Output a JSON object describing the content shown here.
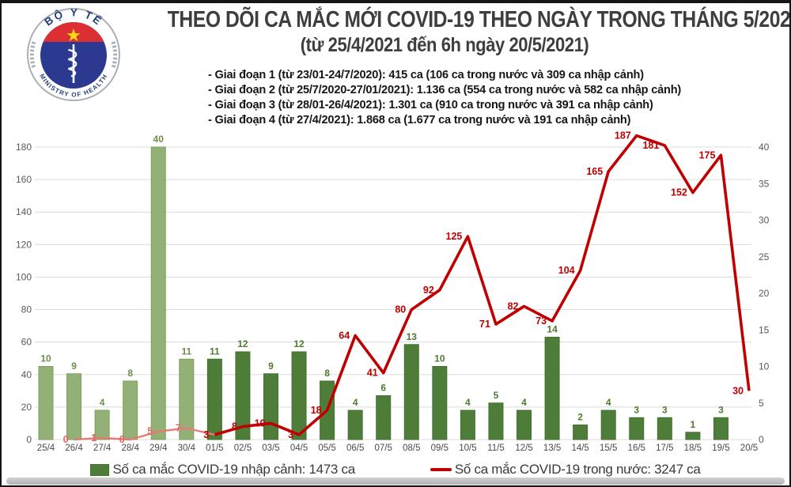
{
  "header": {
    "title": "THEO DÕI CA MẮC MỚI COVID-19 THEO NGÀY TRONG THÁNG 5/2021",
    "subtitle": "(từ 25/4/2021 đến 6h ngày 20/5/2021)",
    "bullets": [
      "- Giai đoạn 1 (từ 23/01-24/7/2020): 415 ca (106 ca trong nước và 309 ca nhập cảnh)",
      "- Giai đoạn 2 (từ 25/7/2020-27/01/2021): 1.136 ca (554 ca trong nước và 582 ca nhập cảnh)",
      "- Giai đoạn 3 (từ 28/01-26/4/2021): 1.301 ca (910 ca trong nước và 391 ca nhập cảnh)",
      "- Giai đoạn 4 (từ 27/4/2021): 1.868 ca (1.677 ca trong nước và 191 ca nhập cảnh)"
    ],
    "logo": {
      "top_text": "BỘ Y TẾ",
      "bottom_text": "MINISTRY OF HEALTH"
    }
  },
  "chart_data": {
    "type": "combo",
    "categories": [
      "25/4",
      "26/4",
      "27/4",
      "28/4",
      "29/4",
      "30/4",
      "01/5",
      "02/5",
      "03/5",
      "04/5",
      "05/5",
      "06/5",
      "07/5",
      "08/5",
      "09/5",
      "10/5",
      "11/5",
      "12/5",
      "13/5",
      "14/5",
      "15/5",
      "16/5",
      "17/5",
      "18/5",
      "19/5",
      "20/5"
    ],
    "series": [
      {
        "name": "Số ca mắc COVID-19 nhập cảnh",
        "type": "bar",
        "axis": "right",
        "values": [
          10,
          9,
          4,
          8,
          40,
          11,
          11,
          12,
          9,
          12,
          8,
          4,
          6,
          13,
          10,
          4,
          5,
          4,
          14,
          2,
          4,
          3,
          3,
          1,
          3,
          null
        ]
      },
      {
        "name": "Số ca mắc COVID-19 trong nước",
        "type": "line",
        "axis": "left",
        "values": [
          null,
          0,
          1,
          0,
          5,
          7,
          3,
          8,
          10,
          3,
          18,
          64,
          41,
          80,
          92,
          125,
          71,
          82,
          73,
          104,
          165,
          187,
          181,
          152,
          175,
          30
        ]
      }
    ],
    "left_axis": {
      "min": 0,
      "max": 180,
      "step": 20,
      "ticks": [
        0,
        20,
        40,
        60,
        80,
        100,
        120,
        140,
        160,
        180
      ]
    },
    "right_axis": {
      "min": 0,
      "max": 40,
      "step": 5,
      "ticks": [
        0,
        5,
        10,
        15,
        20,
        25,
        30,
        35,
        40
      ]
    },
    "grid": true,
    "legend_position": "bottom",
    "highlight": {
      "light_count": 6,
      "note": "April dates (25/4-30/4) drawn in lighter shades"
    },
    "colors": {
      "bar_light": "#93b177",
      "bar_light_edge": "#7ba05c",
      "bar_dark": "#4e7d39",
      "bar_dark_edge": "#44702f",
      "bar_label_light": "#6d8f4a",
      "bar_label_dark": "#4e7a2e",
      "line_light": "#e87a74",
      "line_dark": "#c00000",
      "line_label_light": "#e06666",
      "line_label_dark": "#c00000",
      "grid": "#dcdcdc",
      "axis_text": "#595959",
      "date_text": "#4a4a4a"
    }
  },
  "legend": {
    "imported_label": "Số ca mắc COVID-19 nhập cảnh: 1473 ca",
    "domestic_label": "Số ca mắc COVID-19 trong nước: 3247 ca"
  }
}
